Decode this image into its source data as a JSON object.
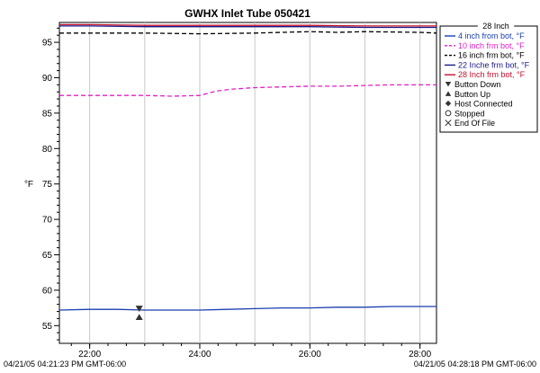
{
  "chart_data": {
    "type": "line",
    "title": "GWHX Inlet Tube 050421",
    "ylabel": "°F",
    "xlabel": "",
    "x_tick_labels": [
      "22:00",
      "24:00",
      "26:00",
      "28:00"
    ],
    "x_ticks_hours": [
      22,
      24,
      26,
      28
    ],
    "xlim_hours": [
      21.45,
      28.3
    ],
    "ylim": [
      52.5,
      97.8
    ],
    "y_ticks": [
      55,
      60,
      65,
      70,
      75,
      80,
      85,
      90,
      95
    ],
    "grid": "vertical",
    "legend_title": "28 Inch",
    "legend_position": "right",
    "series": [
      {
        "name": "4 inch from bot, °F",
        "color": "#1a3fb0",
        "dash": "solid",
        "x": [
          21.45,
          22.0,
          22.5,
          23.0,
          23.5,
          24.0,
          24.5,
          25.0,
          25.5,
          26.0,
          26.5,
          27.0,
          27.5,
          28.0,
          28.3
        ],
        "y": [
          57.2,
          57.3,
          57.3,
          57.2,
          57.2,
          57.2,
          57.3,
          57.4,
          57.5,
          57.5,
          57.6,
          57.6,
          57.7,
          57.7,
          57.7
        ]
      },
      {
        "name": "10 inch frm bot, °F",
        "color": "#e020c8",
        "dash": "dashed",
        "x": [
          21.45,
          22.0,
          22.5,
          23.0,
          23.5,
          24.0,
          24.3,
          24.6,
          25.0,
          25.5,
          26.0,
          26.5,
          27.0,
          27.5,
          28.0,
          28.3
        ],
        "y": [
          87.5,
          87.5,
          87.5,
          87.5,
          87.4,
          87.5,
          88.1,
          88.4,
          88.6,
          88.7,
          88.8,
          88.8,
          88.9,
          89.0,
          89.0,
          89.0
        ]
      },
      {
        "name": "16 inch frm bot, °F",
        "color": "#000000",
        "dash": "dashed",
        "x": [
          21.45,
          22.0,
          23.0,
          24.0,
          25.0,
          26.0,
          26.5,
          27.0,
          28.0,
          28.3
        ],
        "y": [
          96.3,
          96.3,
          96.3,
          96.2,
          96.3,
          96.5,
          96.4,
          96.5,
          96.4,
          96.3
        ]
      },
      {
        "name": "22 Inche frm bot, °F",
        "color": "#1a1a8a",
        "dash": "solid",
        "x": [
          21.45,
          22.0,
          23.0,
          24.0,
          25.0,
          26.0,
          27.0,
          28.0,
          28.3
        ],
        "y": [
          97.3,
          97.3,
          97.2,
          97.2,
          97.2,
          97.2,
          97.1,
          97.1,
          97.1
        ]
      },
      {
        "name": "28 Inch frm bot, °F",
        "color": "#c0102a",
        "dash": "solid",
        "x": [
          21.45,
          22.0,
          23.0,
          24.0,
          25.0,
          26.0,
          27.0,
          28.0,
          28.3
        ],
        "y": [
          97.5,
          97.5,
          97.4,
          97.4,
          97.4,
          97.4,
          97.3,
          97.3,
          97.3
        ]
      }
    ],
    "event_legend": [
      {
        "symbol": "triangle-down",
        "name": "Button Down"
      },
      {
        "symbol": "triangle-up",
        "name": "Button Up"
      },
      {
        "symbol": "diamond",
        "name": "Host Connected"
      },
      {
        "symbol": "circle",
        "name": "Stopped"
      },
      {
        "symbol": "x",
        "name": "End Of File"
      }
    ],
    "events": [
      {
        "symbol": "triangle-down",
        "x": 22.9,
        "y": 57.4
      },
      {
        "symbol": "triangle-up",
        "x": 22.9,
        "y": 56.2
      }
    ]
  },
  "footer": {
    "start": "04/21/05 04:21:23 PM GMT-06:00",
    "end": "04/21/05 04:28:18 PM GMT-06:00"
  }
}
